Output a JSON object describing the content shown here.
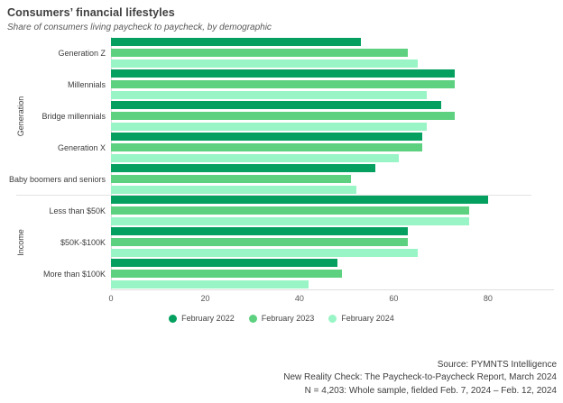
{
  "header": {
    "title": "Consumers’ financial lifestyles",
    "subtitle": "Share of consumers living paycheck to paycheck, by demographic"
  },
  "chart_data": {
    "type": "bar",
    "orientation": "horizontal",
    "title": "Consumers’ financial lifestyles",
    "subtitle": "Share of consumers living paycheck to paycheck, by demographic",
    "xlim": [
      0,
      94
    ],
    "x_ticks": [
      "0",
      "20",
      "40",
      "60",
      "80"
    ],
    "x_tick_values": [
      0,
      20,
      40,
      60,
      80
    ],
    "grid": false,
    "legend_position": "bottom-center",
    "series": [
      {
        "name": "February 2022",
        "color": "#05a05f"
      },
      {
        "name": "February 2023",
        "color": "#5dd17f"
      },
      {
        "name": "February 2024",
        "color": "#99f5c5"
      }
    ],
    "groups": [
      {
        "section": "Generation",
        "categories": [
          {
            "label": "Generation Z",
            "values": [
              53,
              63,
              65
            ]
          },
          {
            "label": "Millennials",
            "values": [
              73,
              73,
              67
            ]
          },
          {
            "label": "Bridge millennials",
            "values": [
              70,
              73,
              67
            ]
          },
          {
            "label": "Generation X",
            "values": [
              66,
              66,
              61
            ]
          },
          {
            "label": "Baby boomers and seniors",
            "values": [
              56,
              51,
              52
            ]
          }
        ]
      },
      {
        "section": "Income",
        "categories": [
          {
            "label": "Less than $50K",
            "values": [
              80,
              76,
              76
            ]
          },
          {
            "label": "$50K-$100K",
            "values": [
              63,
              63,
              65
            ]
          },
          {
            "label": "More than $100K",
            "values": [
              48,
              49,
              42
            ]
          }
        ]
      }
    ]
  },
  "footer": {
    "source": "Source: PYMNTS Intelligence",
    "report": "New Reality Check: The Paycheck-to-Paycheck Report, March 2024",
    "sample": "N = 4,203: Whole sample, fielded Feb. 7, 2024 – Feb. 12, 2024"
  }
}
